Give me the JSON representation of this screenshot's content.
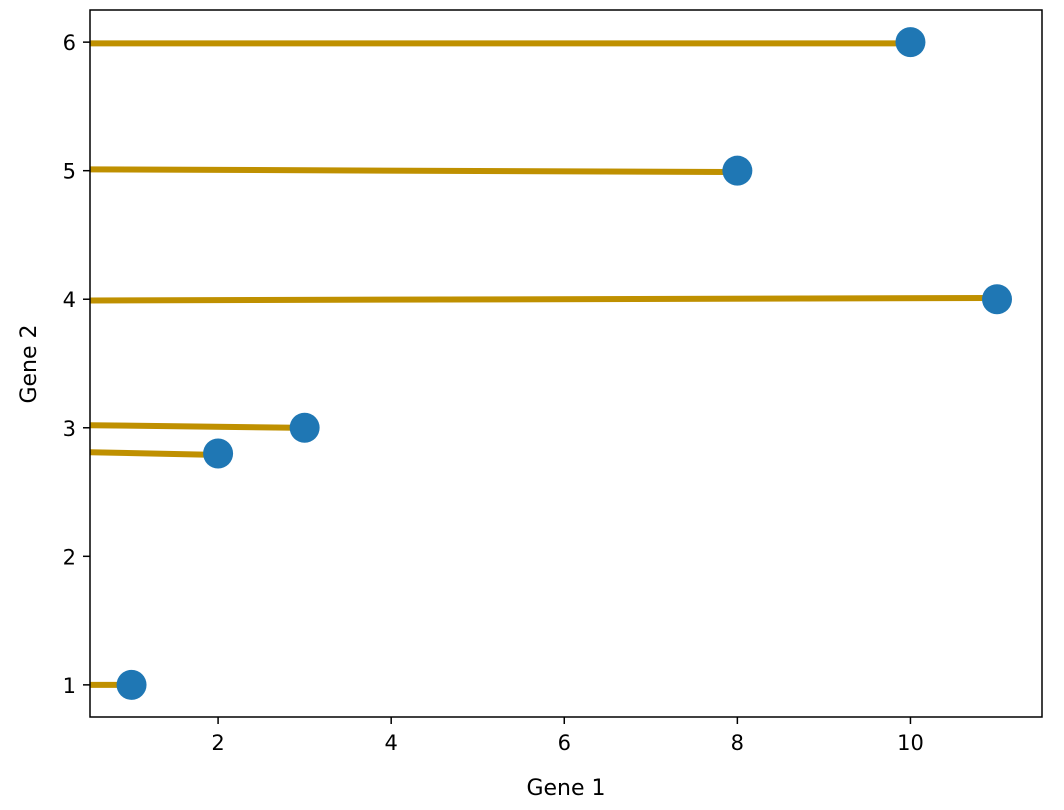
{
  "chart_data": {
    "type": "scatter",
    "title": "",
    "xlabel": "Gene 1",
    "ylabel": "Gene 2",
    "xlim": [
      0.52,
      11.52
    ],
    "ylim": [
      0.75,
      6.25
    ],
    "xticks": [
      2,
      4,
      6,
      8,
      10
    ],
    "yticks": [
      1,
      2,
      3,
      4,
      5,
      6
    ],
    "grid": false,
    "legend": "none",
    "points": [
      {
        "x": 1,
        "y": 1
      },
      {
        "x": 2,
        "y": 2.8
      },
      {
        "x": 3,
        "y": 3
      },
      {
        "x": 11,
        "y": 4
      },
      {
        "x": 8,
        "y": 5
      },
      {
        "x": 10,
        "y": 6
      }
    ],
    "segments": [
      {
        "x0": 0.52,
        "y0": 1.0,
        "x1": 0.9,
        "y1": 1.0
      },
      {
        "x0": 0.52,
        "y0": 2.81,
        "x1": 1.9,
        "y1": 2.79
      },
      {
        "x0": 0.52,
        "y0": 3.02,
        "x1": 2.9,
        "y1": 3.0
      },
      {
        "x0": 0.52,
        "y0": 3.99,
        "x1": 10.9,
        "y1": 4.01
      },
      {
        "x0": 0.52,
        "y0": 5.01,
        "x1": 7.9,
        "y1": 4.99
      },
      {
        "x0": 0.52,
        "y0": 5.99,
        "x1": 9.9,
        "y1": 5.99
      }
    ],
    "colors": {
      "points": "#1f77b4",
      "lines": "#bf9000"
    }
  }
}
